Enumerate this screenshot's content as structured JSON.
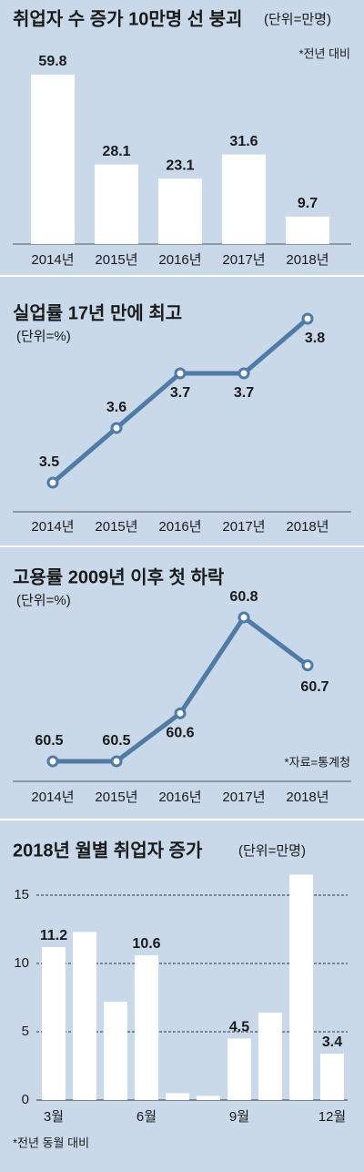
{
  "chart_data": [
    {
      "type": "bar",
      "title": "취업자 수 증가 10만명 선 붕괴",
      "subtitle": "(단위=만명)",
      "note": "*전년 대비",
      "categories": [
        "2014년",
        "2015년",
        "2016년",
        "2017년",
        "2018년"
      ],
      "values": [
        59.8,
        28.1,
        23.1,
        31.6,
        9.7
      ],
      "color": "#ffffff"
    },
    {
      "type": "line",
      "title": "실업률 17년 만에 최고",
      "subtitle": "(단위=%)",
      "categories": [
        "2014년",
        "2015년",
        "2016년",
        "2017년",
        "2018년"
      ],
      "values": [
        3.5,
        3.6,
        3.7,
        3.7,
        3.8
      ],
      "color": "#4f7ba6"
    },
    {
      "type": "line",
      "title": "고용률 2009년 이후 첫 하락",
      "subtitle": "(단위=%)",
      "note": "*자료=통계청",
      "categories": [
        "2014년",
        "2015년",
        "2016년",
        "2017년",
        "2018년"
      ],
      "values": [
        60.5,
        60.5,
        60.6,
        60.8,
        60.7
      ],
      "color": "#4f7ba6"
    },
    {
      "type": "bar",
      "title": "2018년 월별 취업자 증가",
      "subtitle": "(단위=만명)",
      "note": "*전년 동월 대비",
      "categories": [
        "3월",
        null,
        null,
        "6월",
        null,
        null,
        "9월",
        null,
        null,
        "12월"
      ],
      "values": [
        11.2,
        12.3,
        7.2,
        10.6,
        0.5,
        0.3,
        4.5,
        6.4,
        16.5,
        3.4
      ],
      "value_labels": [
        "11.2",
        null,
        null,
        "10.6",
        null,
        null,
        "4.5",
        null,
        null,
        "3.4"
      ],
      "color": "#ffffff",
      "ylim": [
        0,
        17
      ],
      "yticks": [
        0,
        5,
        10,
        15
      ],
      "grid": true
    }
  ]
}
